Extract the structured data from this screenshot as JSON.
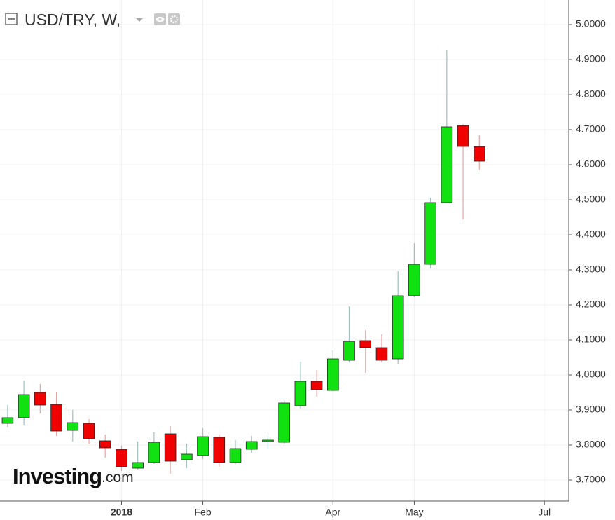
{
  "chart_data": {
    "type": "candlestick",
    "title": "USD/TRY, W,",
    "logo": "Investing",
    "logo_suffix": ".com",
    "x": [
      0,
      1,
      2,
      3,
      4,
      5,
      6,
      7,
      8,
      9,
      10,
      11,
      12,
      13,
      14,
      15,
      16,
      17,
      18,
      19,
      20,
      21,
      22,
      23,
      24,
      25,
      26,
      27,
      28,
      29
    ],
    "open": [
      3.862,
      3.878,
      3.95,
      3.916,
      3.842,
      3.862,
      3.812,
      3.788,
      3.734,
      3.75,
      3.832,
      3.758,
      3.77,
      3.822,
      3.75,
      3.788,
      3.81,
      3.808,
      3.912,
      3.982,
      3.956,
      4.042,
      4.098,
      4.078,
      4.046,
      4.226,
      4.316,
      4.492,
      4.712,
      4.652
    ],
    "high": [
      3.914,
      3.984,
      3.974,
      3.95,
      3.9,
      3.874,
      3.83,
      3.798,
      3.81,
      3.836,
      3.854,
      3.804,
      3.848,
      3.83,
      3.814,
      3.826,
      3.826,
      3.928,
      4.038,
      4.014,
      4.07,
      4.196,
      4.128,
      4.116,
      4.296,
      4.376,
      4.506,
      4.926,
      4.716,
      4.684
    ],
    "low": [
      3.85,
      3.856,
      3.89,
      3.826,
      3.81,
      3.804,
      3.764,
      3.726,
      3.73,
      3.746,
      3.718,
      3.734,
      3.76,
      3.738,
      3.746,
      3.778,
      3.79,
      3.804,
      3.904,
      3.938,
      3.954,
      4.036,
      4.006,
      4.036,
      4.03,
      4.222,
      4.304,
      4.492,
      4.444,
      4.586
    ],
    "close": [
      3.878,
      3.944,
      3.914,
      3.84,
      3.864,
      3.818,
      3.792,
      3.738,
      3.75,
      3.808,
      3.754,
      3.774,
      3.824,
      3.75,
      3.79,
      3.81,
      3.814,
      3.92,
      3.982,
      3.958,
      4.046,
      4.096,
      4.078,
      4.042,
      4.226,
      4.316,
      4.492,
      4.708,
      4.652,
      4.61
    ],
    "up_color": "#11e011",
    "down_color": "#f00000",
    "up_wick_color": "#9fbfbf",
    "down_wick_color": "#e8a4a4",
    "xlim": [
      -0.47,
      34.5
    ],
    "xticks": [
      {
        "value": 7,
        "label": "2018"
      },
      {
        "value": 12,
        "label": "Feb"
      },
      {
        "value": 20,
        "label": "Apr"
      },
      {
        "value": 25,
        "label": "May"
      },
      {
        "value": 33,
        "label": "Jul"
      }
    ],
    "ylim": [
      3.64,
      5.07
    ],
    "yticks": [
      {
        "value": 3.7,
        "label": "3.7000"
      },
      {
        "value": 3.8,
        "label": "3.8000"
      },
      {
        "value": 3.9,
        "label": "3.9000"
      },
      {
        "value": 4.0,
        "label": "4.0000"
      },
      {
        "value": 4.1,
        "label": "4.1000"
      },
      {
        "value": 4.2,
        "label": "4.2000"
      },
      {
        "value": 4.3,
        "label": "4.3000"
      },
      {
        "value": 4.4,
        "label": "4.4000"
      },
      {
        "value": 4.5,
        "label": "4.5000"
      },
      {
        "value": 4.6,
        "label": "4.6000"
      },
      {
        "value": 4.7,
        "label": "4.7000"
      },
      {
        "value": 4.8,
        "label": "4.8000"
      },
      {
        "value": 4.9,
        "label": "4.9000"
      },
      {
        "value": 5.0,
        "label": "5.0000"
      }
    ],
    "grid": true
  }
}
